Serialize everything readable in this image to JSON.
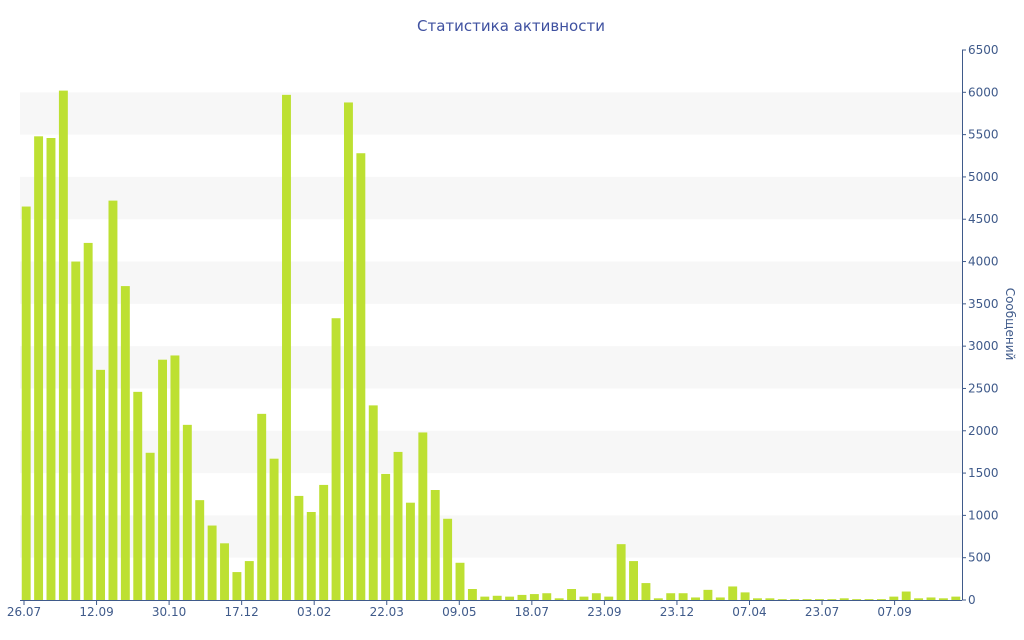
{
  "chart_data": {
    "type": "bar",
    "title": "Статистика активности",
    "ylabel": "Сообщений",
    "xlabel": "",
    "ylim": [
      0,
      6500
    ],
    "y_ticks": [
      0,
      500,
      1000,
      1500,
      2000,
      2500,
      3000,
      3500,
      4000,
      4500,
      5000,
      5500,
      6000,
      6500
    ],
    "y_axis_side": "right",
    "bar_color": "#bde032",
    "band_color": "#f7f7f7",
    "axis_color": "#3f5a8a",
    "title_color": "#3f51a0",
    "x_tick_labels": [
      "26.07",
      "12.09",
      "30.10",
      "17.12",
      "03.02",
      "22.03",
      "09.05",
      "18.07",
      "23.09",
      "23.12",
      "07.04",
      "23.07",
      "07.09"
    ],
    "series": [
      {
        "values": [
          4650,
          5480,
          5460,
          6020,
          4000,
          4220,
          2720,
          4720,
          3710,
          2460,
          1740,
          2840,
          2890,
          2070,
          1180,
          880,
          670,
          330,
          460,
          2200,
          1670,
          5970,
          1230,
          1040,
          1360,
          3330,
          5880,
          5280,
          2300,
          1490,
          1750,
          1150,
          1980,
          1300,
          960,
          440,
          130,
          40,
          50,
          40,
          60,
          70,
          80,
          20,
          130,
          40,
          80,
          40,
          660,
          460,
          200,
          20,
          80,
          80,
          30,
          120,
          30,
          160,
          90,
          20,
          20,
          10,
          10,
          10,
          10,
          10,
          20,
          10,
          10,
          10,
          40,
          100,
          20,
          30,
          20,
          40
        ]
      }
    ]
  }
}
